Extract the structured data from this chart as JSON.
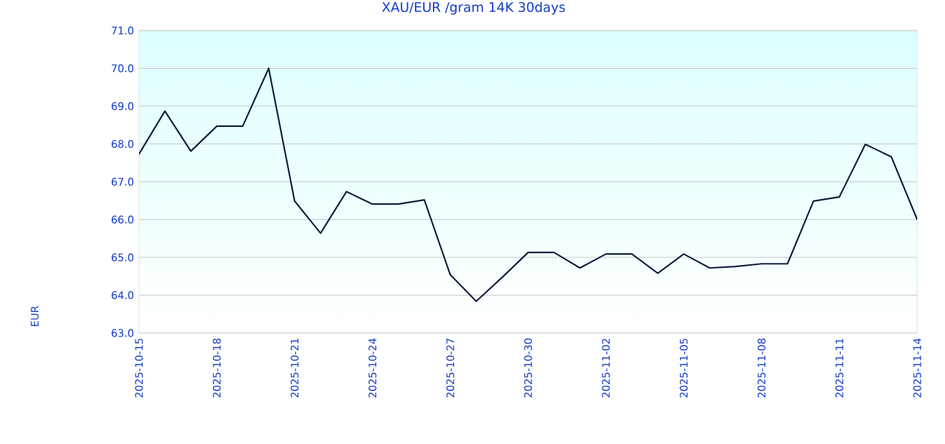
{
  "chart_data": {
    "type": "line",
    "title": "XAU/EUR /gram 14K 30days",
    "annotations": [
      "EUR"
    ],
    "x": [
      "2025-10-15",
      "2025-10-16",
      "2025-10-17",
      "2025-10-18",
      "2025-10-19",
      "2025-10-20",
      "2025-10-21",
      "2025-10-22",
      "2025-10-23",
      "2025-10-24",
      "2025-10-25",
      "2025-10-26",
      "2025-10-27",
      "2025-10-28",
      "2025-10-29",
      "2025-10-30",
      "2025-10-31",
      "2025-11-01",
      "2025-11-02",
      "2025-11-03",
      "2025-11-04",
      "2025-11-05",
      "2025-11-06",
      "2025-11-07",
      "2025-11-08",
      "2025-11-09",
      "2025-11-10",
      "2025-11-11",
      "2025-11-12",
      "2025-11-13",
      "2025-11-14"
    ],
    "series": [
      {
        "color": "#0a1e3c",
        "values": [
          67.73,
          68.87,
          67.81,
          68.47,
          68.47,
          70.0,
          66.49,
          65.64,
          66.74,
          66.41,
          66.41,
          66.52,
          64.54,
          63.84,
          64.47,
          65.13,
          65.13,
          64.72,
          65.09,
          65.09,
          64.58,
          65.09,
          64.72,
          64.76,
          64.83,
          64.83,
          66.49,
          66.6,
          67.99,
          67.66,
          66.0
        ]
      }
    ],
    "xlim": [
      "2025-10-15",
      "2025-11-14"
    ],
    "xticks": [
      "2025-10-15",
      "2025-10-18",
      "2025-10-21",
      "2025-10-24",
      "2025-10-27",
      "2025-10-30",
      "2025-11-02",
      "2025-11-05",
      "2025-11-08",
      "2025-11-11",
      "2025-11-14"
    ],
    "ylim": [
      63,
      71
    ],
    "yticks": [
      {
        "value": 63,
        "label": "63.0"
      },
      {
        "value": 64,
        "label": "64.0"
      },
      {
        "value": 65,
        "label": "65.0"
      },
      {
        "value": 66,
        "label": "66.0"
      },
      {
        "value": 67,
        "label": "67.0"
      },
      {
        "value": 68,
        "label": "68.0"
      },
      {
        "value": 69,
        "label": "69.0"
      },
      {
        "value": 70,
        "label": "70.0"
      },
      {
        "value": 71,
        "label": "71.0"
      }
    ],
    "grid": "y",
    "marker": "none",
    "line_style": "solid"
  }
}
